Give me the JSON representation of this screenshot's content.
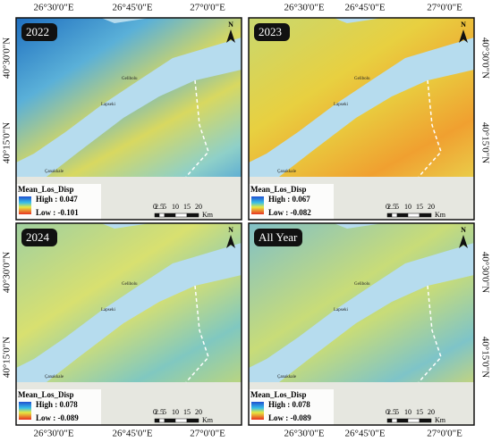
{
  "axes": {
    "top": [
      "26°30'0\"E",
      "26°45'0\"E",
      "27°0'0\"E",
      "26°30'0\"E",
      "26°45'0\"E",
      "27°0'0\"E"
    ],
    "bottom": [
      "26°30'0\"E",
      "26°45'0\"E",
      "27°0'0\"E",
      "26°30'0\"E",
      "26°45'0\"E",
      "27°0'0\"E"
    ],
    "left": [
      "40°30'0\"N",
      "40°15'0\"N",
      "40°30'0\"N",
      "40°15'0\"N"
    ],
    "right": [
      "40°30'0\"N",
      "40°15'0\"N",
      "40°30'0\"N",
      "40°15'0\"N"
    ]
  },
  "panels": [
    {
      "label": "2022",
      "north": "N",
      "legend": {
        "title": "Mean_Los_Disp",
        "high": "High : 0.047",
        "low": "Low : -0.101"
      },
      "scale": {
        "ticks": [
          0,
          2.5,
          5,
          10,
          15,
          20
        ],
        "unit": "Km"
      },
      "places": [
        "Gelibolu",
        "Lapseki",
        "Çanakkale"
      ]
    },
    {
      "label": "2023",
      "north": "N",
      "legend": {
        "title": "Mean_Los_Disp",
        "high": "High : 0.067",
        "low": "Low : -0.082"
      },
      "scale": {
        "ticks": [
          0,
          2.5,
          5,
          10,
          15,
          20
        ],
        "unit": "Km"
      },
      "places": [
        "Gelibolu",
        "Lapseki",
        "Çanakkale"
      ]
    },
    {
      "label": "2024",
      "north": "N",
      "legend": {
        "title": "Mean_Los_Disp",
        "high": "High : 0.078",
        "low": "Low : -0.089"
      },
      "scale": {
        "ticks": [
          0,
          2.5,
          5,
          10,
          15,
          20
        ],
        "unit": "Km"
      },
      "places": [
        "Gelibolu",
        "Lapseki",
        "Çanakkale"
      ]
    },
    {
      "label": "All Year",
      "north": "N",
      "legend": {
        "title": "Mean_Los_Disp",
        "high": "High : 0.078",
        "low": "Low : -0.089"
      },
      "scale": {
        "ticks": [
          0,
          2.5,
          5,
          10,
          15,
          20
        ],
        "unit": "Km"
      },
      "places": [
        "Gelibolu",
        "Lapseki",
        "Çanakkale"
      ]
    }
  ]
}
